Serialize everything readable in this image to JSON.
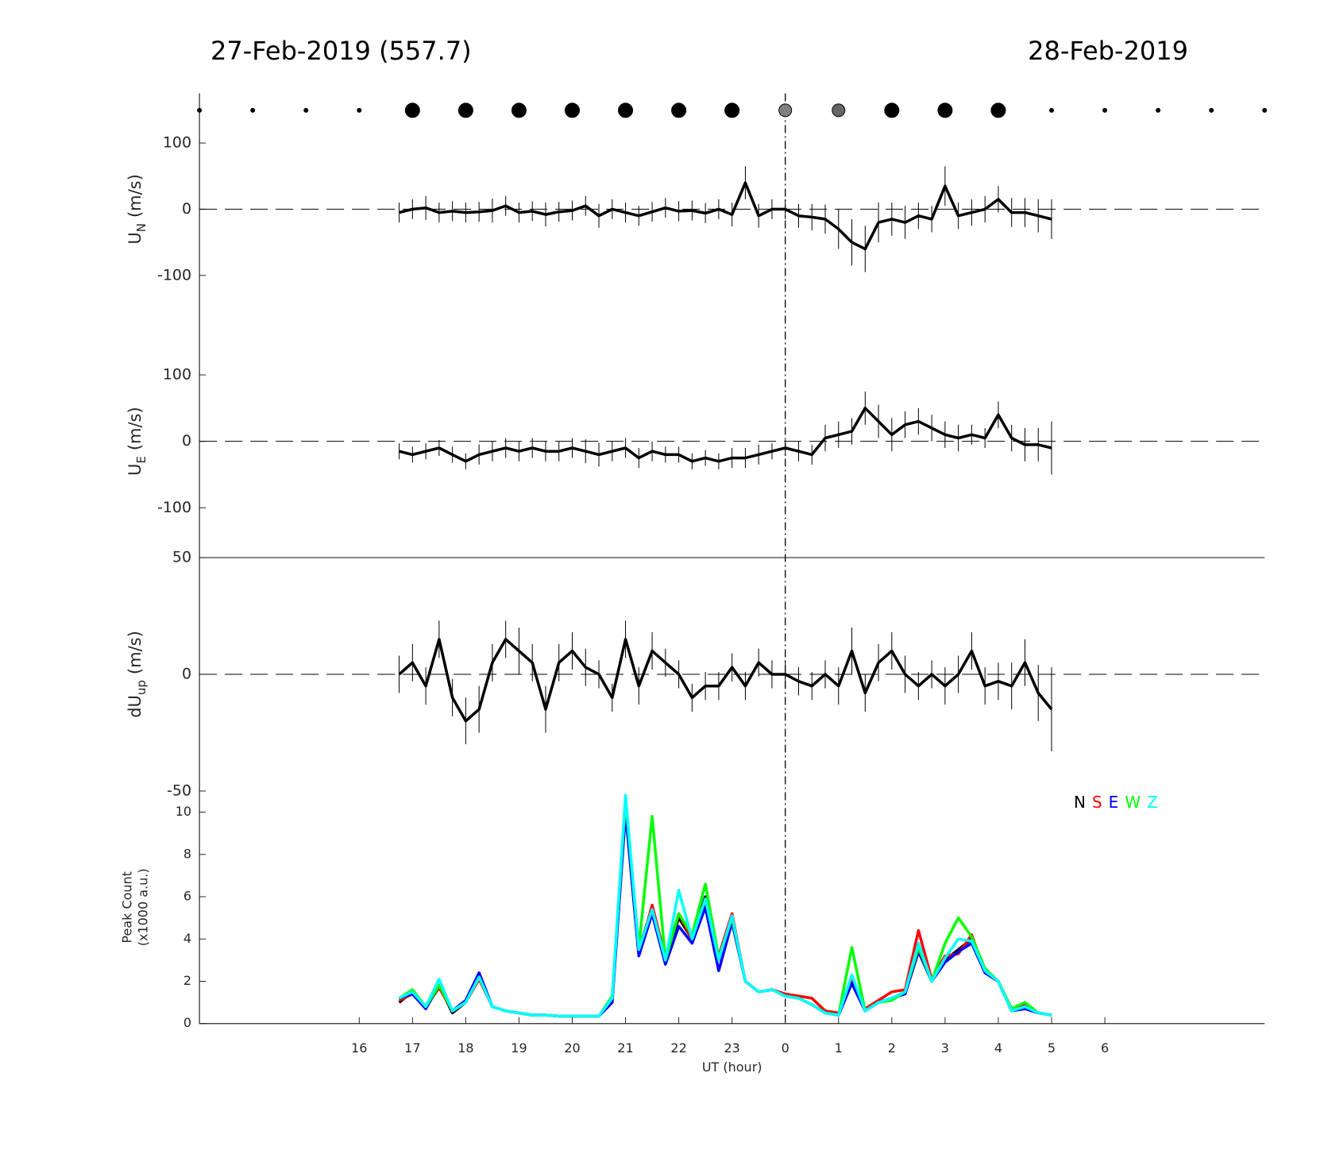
{
  "header": {
    "left": "27-Feb-2019 (557.7)",
    "right": "28-Feb-2019"
  },
  "markers": {
    "x": [
      13,
      14,
      15,
      16,
      17,
      18,
      19,
      20,
      21,
      22,
      23,
      24,
      25,
      26,
      27,
      28,
      29,
      30,
      31,
      32,
      33
    ],
    "sizes": [
      2.5,
      2.5,
      2.5,
      2.5,
      9,
      9,
      9,
      9,
      9,
      9,
      9,
      8,
      8,
      9,
      9,
      9,
      2.5,
      2.5,
      2.5,
      2.5,
      2.5
    ],
    "colors": [
      "#000",
      "#000",
      "#000",
      "#000",
      "#000",
      "#000",
      "#000",
      "#000",
      "#000",
      "#000",
      "#000",
      "#808080",
      "#666666",
      "#000",
      "#000",
      "#000",
      "#000",
      "#000",
      "#000",
      "#000",
      "#000"
    ]
  },
  "reference_x": 24,
  "chart_data": [
    {
      "type": "errorbar",
      "ylabel": "U",
      "ylabel_sub": "N",
      "ylabel_unit": "(m/s)",
      "color": "#000",
      "x": [
        16.75,
        17,
        17.25,
        17.5,
        17.75,
        18,
        18.25,
        18.5,
        18.75,
        19,
        19.25,
        19.5,
        19.75,
        20,
        20.25,
        20.5,
        20.75,
        21,
        21.25,
        21.5,
        21.75,
        22,
        22.25,
        22.5,
        22.75,
        23,
        23.25,
        23.5,
        23.75,
        24,
        24.25,
        24.5,
        24.75,
        25,
        25.25,
        25.5,
        25.75,
        26,
        26.25,
        26.5,
        26.75,
        27,
        27.25,
        27.5,
        27.75,
        28,
        28.25,
        28.5,
        28.75,
        29
      ],
      "values": [
        -5,
        0,
        2,
        -5,
        -3,
        -5,
        -4,
        -2,
        5,
        -5,
        -3,
        -8,
        -4,
        -2,
        5,
        -10,
        0,
        -5,
        -10,
        -4,
        2,
        -3,
        -2,
        -6,
        0,
        -8,
        40,
        -10,
        0,
        0,
        -10,
        -12,
        -15,
        -30,
        -50,
        -60,
        -20,
        -15,
        -20,
        -10,
        -15,
        35,
        -10,
        -5,
        0,
        15,
        -5,
        -5,
        -10,
        -15
      ],
      "errors": [
        15,
        15,
        18,
        15,
        15,
        15,
        15,
        18,
        15,
        15,
        15,
        18,
        15,
        15,
        15,
        18,
        15,
        15,
        15,
        15,
        15,
        15,
        15,
        15,
        15,
        18,
        25,
        18,
        15,
        15,
        18,
        20,
        22,
        30,
        35,
        35,
        30,
        25,
        25,
        20,
        20,
        30,
        20,
        20,
        20,
        20,
        22,
        22,
        25,
        30
      ],
      "xlim": [
        13,
        33
      ],
      "ylim": [
        -175,
        175
      ],
      "yticks": [
        -100,
        0,
        100
      ]
    },
    {
      "type": "errorbar",
      "ylabel": "U",
      "ylabel_sub": "E",
      "ylabel_unit": "(m/s)",
      "color": "#000",
      "x": [
        16.75,
        17,
        17.25,
        17.5,
        17.75,
        18,
        18.25,
        18.5,
        18.75,
        19,
        19.25,
        19.5,
        19.75,
        20,
        20.25,
        20.5,
        20.75,
        21,
        21.25,
        21.5,
        21.75,
        22,
        22.25,
        22.5,
        22.75,
        23,
        23.25,
        23.5,
        23.75,
        24,
        24.25,
        24.5,
        24.75,
        25,
        25.25,
        25.5,
        25.75,
        26,
        26.25,
        26.5,
        26.75,
        27,
        27.25,
        27.5,
        27.75,
        28,
        28.25,
        28.5,
        28.75,
        29
      ],
      "values": [
        -15,
        -20,
        -15,
        -10,
        -20,
        -30,
        -20,
        -15,
        -10,
        -15,
        -10,
        -15,
        -15,
        -10,
        -15,
        -20,
        -15,
        -10,
        -25,
        -15,
        -20,
        -20,
        -30,
        -25,
        -30,
        -25,
        -25,
        -20,
        -15,
        -10,
        -15,
        -20,
        5,
        10,
        15,
        50,
        30,
        10,
        25,
        30,
        20,
        10,
        5,
        10,
        5,
        40,
        5,
        -5,
        -5,
        -10
      ],
      "errors": [
        12,
        12,
        12,
        12,
        12,
        12,
        15,
        15,
        15,
        15,
        15,
        15,
        15,
        15,
        18,
        18,
        15,
        15,
        15,
        15,
        12,
        12,
        12,
        12,
        12,
        15,
        15,
        15,
        12,
        12,
        15,
        15,
        20,
        20,
        20,
        25,
        25,
        25,
        20,
        20,
        20,
        20,
        20,
        15,
        15,
        20,
        20,
        25,
        25,
        40
      ],
      "xlim": [
        13,
        33
      ],
      "ylim": [
        -175,
        175
      ],
      "yticks": [
        -100,
        0,
        100
      ]
    },
    {
      "type": "errorbar",
      "ylabel": "dU",
      "ylabel_sub": "up",
      "ylabel_unit": "(m/s)",
      "color": "#000",
      "x": [
        16.75,
        17,
        17.25,
        17.5,
        17.75,
        18,
        18.25,
        18.5,
        18.75,
        19,
        19.25,
        19.5,
        19.75,
        20,
        20.25,
        20.5,
        20.75,
        21,
        21.25,
        21.5,
        21.75,
        22,
        22.25,
        22.5,
        22.75,
        23,
        23.25,
        23.5,
        23.75,
        24,
        24.25,
        24.5,
        24.75,
        25,
        25.25,
        25.5,
        25.75,
        26,
        26.25,
        26.5,
        26.75,
        27,
        27.25,
        27.5,
        27.75,
        28,
        28.25,
        28.5,
        28.75,
        29
      ],
      "values": [
        0,
        5,
        -5,
        15,
        -10,
        -20,
        -15,
        5,
        15,
        10,
        5,
        -15,
        5,
        10,
        3,
        0,
        -10,
        15,
        -5,
        10,
        5,
        0,
        -10,
        -5,
        -5,
        3,
        -5,
        5,
        0,
        0,
        -3,
        -5,
        0,
        -5,
        10,
        -8,
        5,
        10,
        0,
        -5,
        0,
        -5,
        0,
        10,
        -5,
        -3,
        -5,
        5,
        -8,
        -15
      ],
      "errors": [
        8,
        8,
        8,
        8,
        8,
        10,
        10,
        8,
        8,
        10,
        8,
        10,
        8,
        8,
        8,
        6,
        6,
        8,
        8,
        8,
        6,
        6,
        6,
        6,
        6,
        6,
        6,
        6,
        6,
        6,
        6,
        6,
        6,
        8,
        10,
        8,
        8,
        8,
        8,
        6,
        6,
        8,
        8,
        8,
        8,
        8,
        10,
        10,
        12,
        18
      ],
      "xlim": [
        13,
        33
      ],
      "ylim": [
        -50,
        50
      ],
      "yticks": [
        -50,
        0,
        50
      ]
    },
    {
      "type": "line",
      "ylabel": [
        "Peak Count",
        "(x1000 a.u.)"
      ],
      "xlabel": "UT (hour)",
      "legend": "upper right",
      "x": [
        16.75,
        17,
        17.25,
        17.5,
        17.75,
        18,
        18.25,
        18.5,
        18.75,
        19,
        19.25,
        19.5,
        19.75,
        20,
        20.25,
        20.5,
        20.75,
        21,
        21.25,
        21.5,
        21.75,
        22,
        22.25,
        22.5,
        22.75,
        23,
        23.25,
        23.5,
        23.75,
        24,
        24.25,
        24.5,
        24.75,
        25,
        25.25,
        25.5,
        25.75,
        26,
        26.25,
        26.5,
        26.75,
        27,
        27.25,
        27.5,
        27.75,
        28,
        28.25,
        28.5,
        28.75,
        29
      ],
      "series": [
        {
          "name": "N",
          "color": "#000000",
          "values": [
            1.0,
            1.5,
            0.8,
            1.8,
            0.5,
            1.0,
            2.2,
            0.8,
            0.6,
            0.5,
            0.4,
            0.4,
            0.35,
            0.35,
            0.35,
            0.35,
            1.2,
            10.5,
            3.5,
            5.5,
            3.0,
            5.0,
            4.0,
            6.0,
            3.0,
            5.0,
            2.0,
            1.5,
            1.6,
            1.3,
            1.2,
            0.9,
            0.5,
            0.4,
            2.0,
            0.6,
            1.0,
            1.2,
            1.5,
            3.5,
            2.0,
            3.0,
            3.5,
            4.0,
            2.5,
            2.0,
            0.6,
            0.8,
            0.5,
            0.4
          ]
        },
        {
          "name": "S",
          "color": "#ff0000",
          "values": [
            1.1,
            1.4,
            0.8,
            1.7,
            0.6,
            1.0,
            2.1,
            0.8,
            0.6,
            0.5,
            0.4,
            0.4,
            0.35,
            0.35,
            0.35,
            0.35,
            1.1,
            10.3,
            3.3,
            5.6,
            3.1,
            5.2,
            4.0,
            5.8,
            3.2,
            5.2,
            2.0,
            1.5,
            1.6,
            1.4,
            1.3,
            1.2,
            0.6,
            0.5,
            2.1,
            0.7,
            1.1,
            1.5,
            1.6,
            4.4,
            2.1,
            3.2,
            3.3,
            4.2,
            2.4,
            2.0,
            0.7,
            0.9,
            0.5,
            0.4
          ]
        },
        {
          "name": "E",
          "color": "#0000ff",
          "values": [
            1.2,
            1.4,
            0.7,
            1.8,
            0.6,
            1.1,
            2.4,
            0.8,
            0.6,
            0.5,
            0.4,
            0.4,
            0.35,
            0.35,
            0.35,
            0.35,
            1.0,
            10.0,
            3.2,
            5.2,
            2.8,
            4.6,
            3.8,
            5.5,
            2.5,
            4.8,
            2.0,
            1.5,
            1.6,
            1.3,
            1.2,
            0.9,
            0.5,
            0.4,
            1.9,
            0.6,
            1.0,
            1.2,
            1.4,
            3.4,
            2.0,
            2.9,
            3.4,
            3.8,
            2.4,
            2.0,
            0.6,
            0.7,
            0.5,
            0.4
          ]
        },
        {
          "name": "W",
          "color": "#00ff00",
          "values": [
            1.2,
            1.6,
            0.8,
            1.8,
            0.6,
            1.0,
            2.2,
            0.8,
            0.6,
            0.5,
            0.4,
            0.4,
            0.35,
            0.35,
            0.35,
            0.35,
            1.3,
            10.6,
            3.6,
            9.8,
            3.0,
            5.2,
            4.2,
            6.6,
            3.1,
            5.0,
            2.0,
            1.5,
            1.6,
            1.3,
            1.2,
            0.9,
            0.5,
            0.4,
            3.6,
            0.6,
            1.0,
            1.1,
            1.5,
            3.6,
            2.0,
            3.8,
            5.0,
            4.1,
            2.6,
            2.0,
            0.7,
            1.0,
            0.5,
            0.4
          ]
        },
        {
          "name": "Z",
          "color": "#00ffff",
          "values": [
            1.2,
            1.5,
            0.8,
            2.1,
            0.6,
            1.0,
            2.2,
            0.8,
            0.6,
            0.5,
            0.4,
            0.4,
            0.35,
            0.35,
            0.35,
            0.35,
            1.2,
            10.8,
            3.5,
            5.4,
            3.0,
            6.3,
            4.0,
            5.9,
            3.0,
            5.1,
            2.0,
            1.5,
            1.6,
            1.3,
            1.2,
            0.9,
            0.5,
            0.4,
            2.3,
            0.6,
            1.0,
            1.2,
            1.5,
            3.8,
            2.0,
            3.1,
            4.0,
            3.9,
            2.5,
            2.0,
            0.6,
            0.8,
            0.5,
            0.4
          ]
        }
      ],
      "xlim": [
        13,
        33
      ],
      "ylim": [
        0,
        11
      ],
      "yticks": [
        0,
        2,
        4,
        6,
        8,
        10
      ],
      "xticks": [
        16,
        17,
        18,
        19,
        20,
        21,
        22,
        23,
        {
          "value": 24,
          "label": "0"
        },
        {
          "value": 25,
          "label": "1"
        },
        {
          "value": 26,
          "label": "2"
        },
        {
          "value": 27,
          "label": "3"
        },
        {
          "value": 28,
          "label": "4"
        },
        {
          "value": 29,
          "label": "5"
        },
        {
          "value": 30,
          "label": "6"
        }
      ]
    }
  ]
}
